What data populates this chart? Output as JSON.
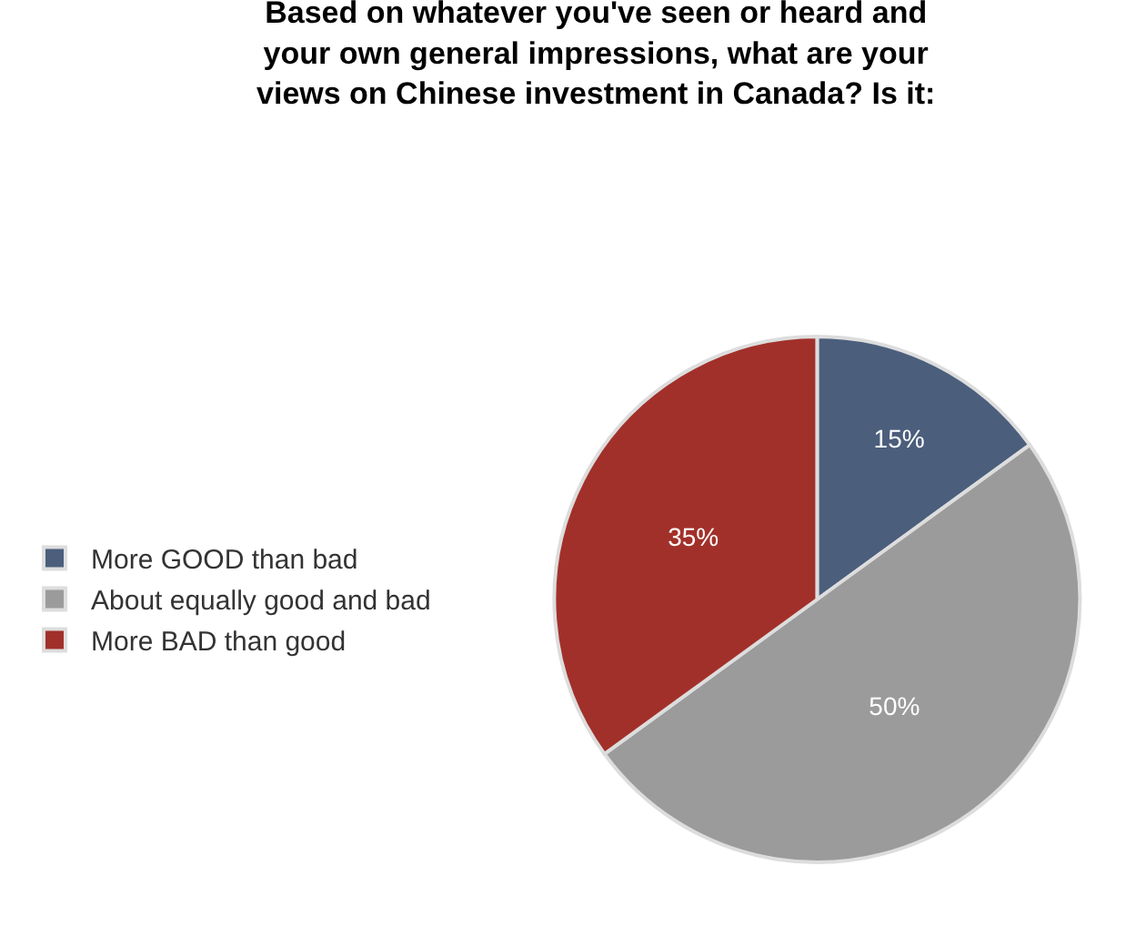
{
  "chart_data": {
    "type": "pie",
    "title": "Based on whatever you've seen or heard and\nyour own general impressions, what are your\nviews on Chinese investment in Canada? Is it:",
    "categories": [
      "More GOOD than bad",
      "About equally good and bad",
      "More BAD than good"
    ],
    "values": [
      15,
      50,
      35
    ],
    "value_labels": [
      "15%",
      "50%",
      "35%"
    ],
    "colors": [
      "#4b5e7c",
      "#9b9b9b",
      "#a2302a"
    ],
    "legend": "left"
  }
}
